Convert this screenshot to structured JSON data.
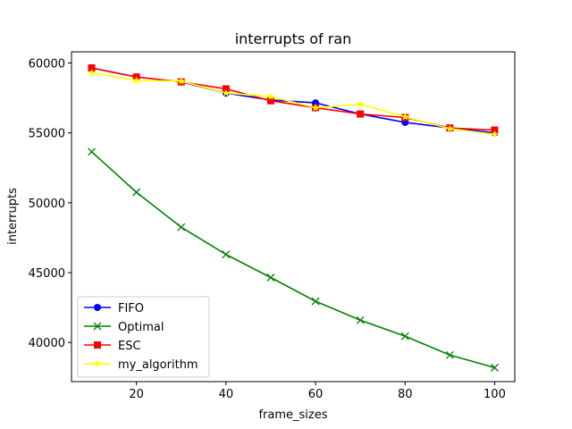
{
  "chart_data": {
    "type": "line",
    "title": "interrupts of ran",
    "xlabel": "frame_sizes",
    "ylabel": "interrupts",
    "xlim": [
      5.5,
      104.5
    ],
    "ylim": [
      37200,
      60800
    ],
    "x_ticks": [
      20,
      40,
      60,
      80,
      100
    ],
    "y_ticks": [
      40000,
      45000,
      50000,
      55000,
      60000
    ],
    "grid": false,
    "legend_position": "lower-left",
    "x": [
      10,
      20,
      30,
      40,
      50,
      60,
      70,
      80,
      90,
      100
    ],
    "series": [
      {
        "name": "FIFO",
        "color": "#0000ff",
        "marker": "circle",
        "values": [
          59650,
          59000,
          58650,
          57850,
          57350,
          57150,
          56350,
          55750,
          55350,
          55000
        ]
      },
      {
        "name": "Optimal",
        "color": "#008000",
        "marker": "x",
        "values": [
          53650,
          50750,
          48250,
          46300,
          44650,
          42950,
          41600,
          40450,
          39100,
          38200
        ]
      },
      {
        "name": "ESC",
        "color": "#ff0000",
        "marker": "square",
        "values": [
          59650,
          59000,
          58650,
          58150,
          57300,
          56800,
          56350,
          56100,
          55350,
          55200
        ]
      },
      {
        "name": "my_algorithm",
        "color": "#ffff00",
        "marker": "star",
        "values": [
          59300,
          58750,
          58700,
          57850,
          57600,
          56800,
          57050,
          56150,
          55300,
          54900
        ]
      }
    ]
  }
}
